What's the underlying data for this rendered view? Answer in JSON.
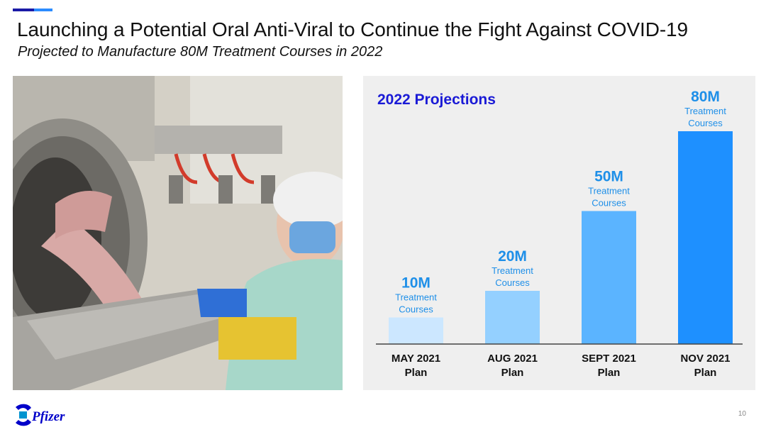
{
  "slide": {
    "title": "Launching a Potential Oral Anti-Viral to Continue the Fight Against COVID-19",
    "subtitle": "Projected to Manufacture 80M Treatment Courses in 2022",
    "page_number": "10",
    "brand": "Pfizer"
  },
  "colors": {
    "accent_dark": "#1a1aa6",
    "accent_light": "#2b8cff",
    "panel_title": "#1a1ad6",
    "bar_colors": [
      "#cce7ff",
      "#94d0ff",
      "#5bb4ff",
      "#1e90ff"
    ],
    "value_label": "#1e8fe8",
    "category_label": "#111111"
  },
  "chart_data": {
    "type": "bar",
    "title": "2022 Projections",
    "categories": [
      [
        "MAY 2021",
        "Plan"
      ],
      [
        "AUG 2021",
        "Plan"
      ],
      [
        "SEPT 2021",
        "Plan"
      ],
      [
        "NOV 2021",
        "Plan"
      ]
    ],
    "values": [
      10,
      20,
      50,
      80
    ],
    "value_labels": [
      "10M",
      "20M",
      "50M",
      "80M"
    ],
    "value_sublabel": [
      "Treatment",
      "Courses"
    ],
    "ylim": [
      0,
      80
    ],
    "grid": false
  }
}
